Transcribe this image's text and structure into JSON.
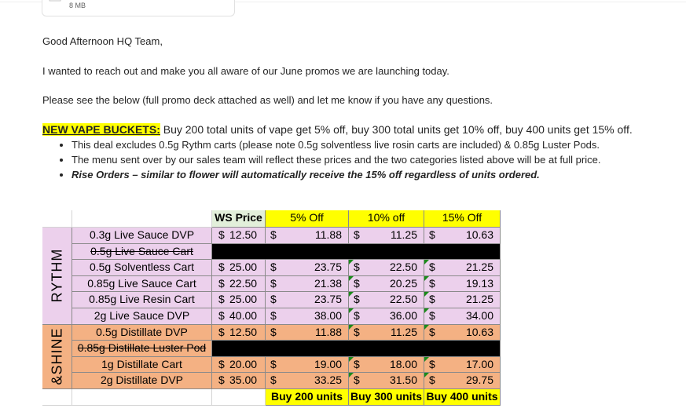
{
  "attachment": {
    "size": "8 MB"
  },
  "email": {
    "greeting": "Good Afternoon HQ Team,",
    "line1": "I wanted to reach out and make you all aware of our June promos we are launching today.",
    "line2": "Please see the below (full promo deck attached as well) and let me know if you have any questions.",
    "promo_label": "NEW VAPE BUCKETS:",
    "promo_text": " Buy 200 total units of vape get 5% off, buy 300 total units get 10% off, buy 400 units get 15% off.",
    "bullets": [
      "This deal excludes 0.5g Rythm carts (please note 0.5g solventless live rosin carts are included) & 0.85g Luster Pods.",
      "The menu sent over by our sales team will reflect these prices and the two categories listed above will be at full price.",
      "Rise Orders – similar to flower will automatically receive the 15% off regardless of units ordered."
    ]
  },
  "table": {
    "headers": [
      "WS Price",
      "5% Off",
      "10% off",
      "15% Off"
    ],
    "group_rythm": "RYTHM",
    "group_shine": "&SHINE",
    "currency": "$",
    "rows": [
      {
        "product": "0.3g Live Sauce DVP",
        "ws": "12.50",
        "p5": "11.88",
        "p10": "11.25",
        "p15": "10.63",
        "group": "rythm"
      },
      {
        "product": "0.5g Live Sauce Cart",
        "ws": "",
        "p5": "",
        "p10": "",
        "p15": "",
        "group": "rythm",
        "excluded": true
      },
      {
        "product": "0.5g Solventless Cart",
        "ws": "25.00",
        "p5": "23.75",
        "p10": "22.50",
        "p15": "21.25",
        "group": "rythm"
      },
      {
        "product": "0.85g Live Sauce Cart",
        "ws": "22.50",
        "p5": "21.38",
        "p10": "20.25",
        "p15": "19.13",
        "group": "rythm"
      },
      {
        "product": "0.85g Live Resin Cart",
        "ws": "25.00",
        "p5": "23.75",
        "p10": "22.50",
        "p15": "21.25",
        "group": "rythm"
      },
      {
        "product": "2g Live Sauce DVP",
        "ws": "40.00",
        "p5": "38.00",
        "p10": "36.00",
        "p15": "34.00",
        "group": "rythm"
      },
      {
        "product": "0.5g Distillate DVP",
        "ws": "12.50",
        "p5": "11.88",
        "p10": "11.25",
        "p15": "10.63",
        "group": "shine"
      },
      {
        "product": "0.85g Distillate Luster Pod",
        "ws": "",
        "p5": "",
        "p10": "",
        "p15": "",
        "group": "shine",
        "excluded": true
      },
      {
        "product": "1g Distillate Cart",
        "ws": "20.00",
        "p5": "19.00",
        "p10": "18.00",
        "p15": "17.00",
        "group": "shine"
      },
      {
        "product": "2g Distillate DVP",
        "ws": "35.00",
        "p5": "33.25",
        "p10": "31.50",
        "p15": "29.75",
        "group": "shine"
      }
    ],
    "footers": [
      "Buy 200 units",
      "Buy 300 units",
      "Buy 400 units"
    ]
  }
}
